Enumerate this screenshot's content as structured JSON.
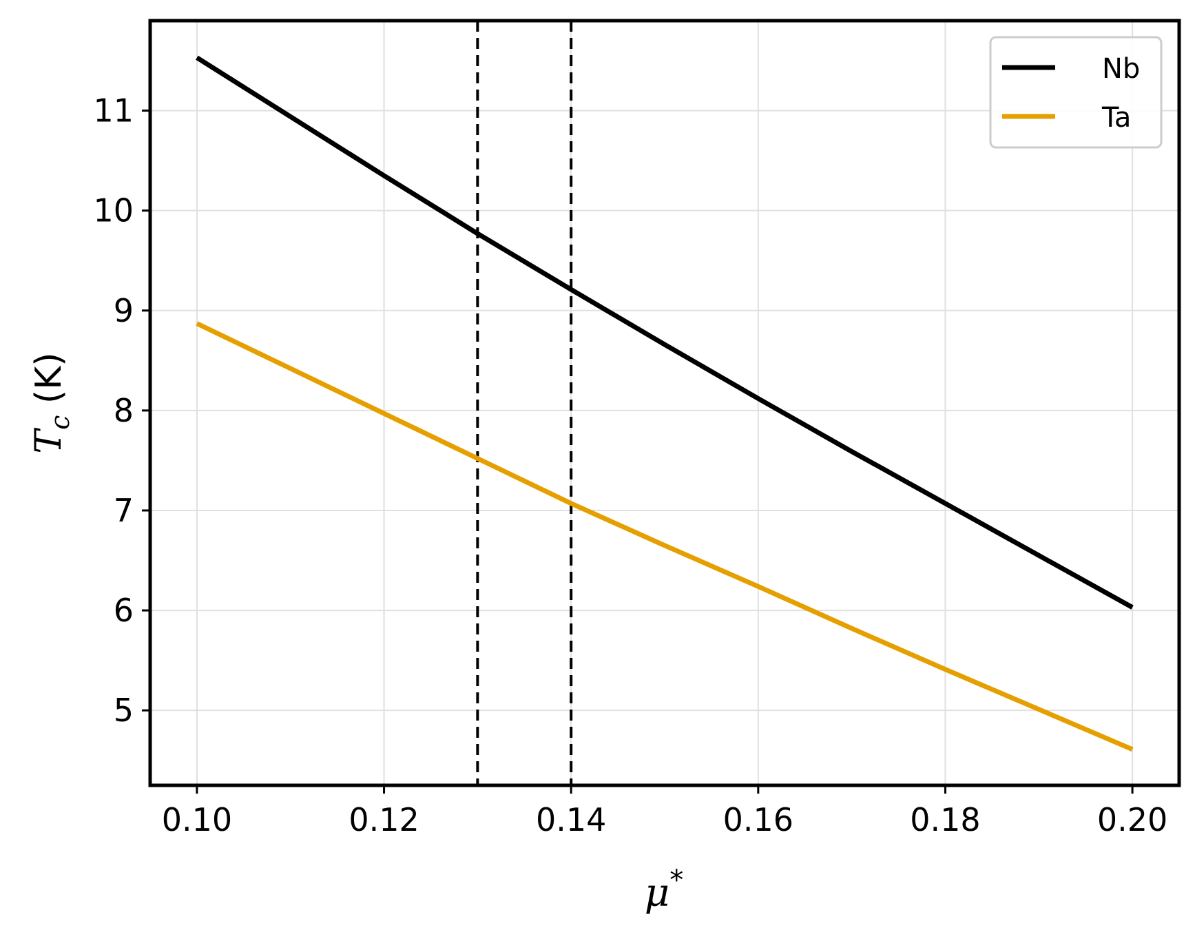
{
  "chart_data": {
    "type": "line",
    "xlabel_main": "μ",
    "xlabel_sup": "*",
    "ylabel_main": "T",
    "ylabel_sub": "c",
    "ylabel_unit": " (K)",
    "xlim": [
      0.095,
      0.205
    ],
    "ylim": [
      4.25,
      11.9
    ],
    "x_ticks": [
      0.1,
      0.12,
      0.14,
      0.16,
      0.18,
      0.2
    ],
    "x_tick_labels": [
      "0.10",
      "0.12",
      "0.14",
      "0.16",
      "0.18",
      "0.20"
    ],
    "y_ticks": [
      5,
      6,
      7,
      8,
      9,
      10,
      11
    ],
    "y_tick_labels": [
      "5",
      "6",
      "7",
      "8",
      "9",
      "10",
      "11"
    ],
    "grid": true,
    "legend_position": "top-right",
    "vertical_lines": [
      {
        "x": 0.13,
        "style": "dashed",
        "color": "#000000"
      },
      {
        "x": 0.14,
        "style": "dashed",
        "color": "#000000"
      }
    ],
    "series": [
      {
        "name": "Nb",
        "color": "#000000",
        "x": [
          0.1,
          0.11,
          0.12,
          0.13,
          0.14,
          0.15,
          0.16,
          0.17,
          0.18,
          0.19,
          0.2
        ],
        "y": [
          11.53,
          10.94,
          10.35,
          9.77,
          9.21,
          8.66,
          8.12,
          7.59,
          7.07,
          6.55,
          6.03
        ]
      },
      {
        "name": "Ta",
        "color": "#e69f00",
        "x": [
          0.1,
          0.11,
          0.12,
          0.13,
          0.14,
          0.15,
          0.16,
          0.17,
          0.18,
          0.19,
          0.2
        ],
        "y": [
          8.87,
          8.42,
          7.97,
          7.52,
          7.07,
          6.65,
          6.24,
          5.82,
          5.41,
          5.01,
          4.61
        ]
      }
    ]
  }
}
